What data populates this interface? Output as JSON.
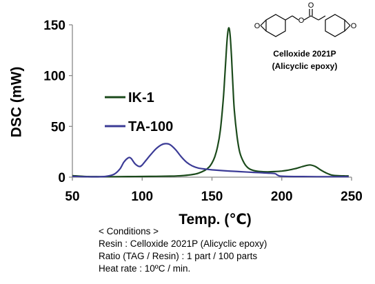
{
  "chart_data": {
    "type": "line",
    "xlabel": "Temp. (℃)",
    "ylabel": "DSC (mW)",
    "xlim": [
      50,
      250
    ],
    "ylim": [
      0,
      150
    ],
    "x_ticks": [
      "50",
      "100",
      "150",
      "200",
      "250"
    ],
    "y_ticks": [
      "0",
      "50",
      "100",
      "150"
    ],
    "grid": false,
    "legend_position": "center-left",
    "series": [
      {
        "name": "IK-1",
        "color": "#1b4a1b",
        "points": [
          [
            50,
            1.5
          ],
          [
            60,
            0.6
          ],
          [
            70,
            0.5
          ],
          [
            80,
            0.5
          ],
          [
            90,
            0.6
          ],
          [
            100,
            0.7
          ],
          [
            110,
            0.8
          ],
          [
            120,
            1.0
          ],
          [
            125,
            1.2
          ],
          [
            130,
            1.6
          ],
          [
            135,
            2.4
          ],
          [
            140,
            3.8
          ],
          [
            145,
            6.8
          ],
          [
            148,
            10
          ],
          [
            150,
            14
          ],
          [
            152,
            20
          ],
          [
            154,
            30
          ],
          [
            156,
            46
          ],
          [
            158,
            75
          ],
          [
            159,
            95
          ],
          [
            160,
            118
          ],
          [
            161,
            138
          ],
          [
            162,
            147
          ],
          [
            163,
            140
          ],
          [
            164,
            118
          ],
          [
            165,
            90
          ],
          [
            166,
            66
          ],
          [
            168,
            40
          ],
          [
            170,
            24
          ],
          [
            173,
            14
          ],
          [
            176,
            9
          ],
          [
            180,
            6.5
          ],
          [
            185,
            5.5
          ],
          [
            190,
            5.2
          ],
          [
            195,
            5.5
          ],
          [
            200,
            6
          ],
          [
            205,
            7
          ],
          [
            210,
            8.5
          ],
          [
            215,
            10.5
          ],
          [
            220,
            12
          ],
          [
            224,
            10.5
          ],
          [
            228,
            7
          ],
          [
            232,
            4
          ],
          [
            236,
            2
          ],
          [
            240,
            1.4
          ],
          [
            245,
            1.3
          ],
          [
            248,
            1.2
          ]
        ]
      },
      {
        "name": "TA-100",
        "color": "#3b3b96",
        "points": [
          [
            50,
            0.8
          ],
          [
            60,
            0.4
          ],
          [
            70,
            0.4
          ],
          [
            75,
            1
          ],
          [
            80,
            3
          ],
          [
            84,
            8
          ],
          [
            87,
            15
          ],
          [
            90,
            19
          ],
          [
            92,
            18.5
          ],
          [
            95,
            13
          ],
          [
            98,
            10.5
          ],
          [
            100,
            12
          ],
          [
            103,
            17
          ],
          [
            106,
            22
          ],
          [
            110,
            28
          ],
          [
            114,
            32
          ],
          [
            117,
            33
          ],
          [
            120,
            32
          ],
          [
            124,
            27
          ],
          [
            128,
            20
          ],
          [
            132,
            14.5
          ],
          [
            136,
            11
          ],
          [
            140,
            9
          ],
          [
            145,
            8
          ],
          [
            150,
            7.2
          ],
          [
            160,
            6.2
          ],
          [
            170,
            5.4
          ],
          [
            180,
            4.7
          ],
          [
            190,
            4
          ],
          [
            195,
            3.5
          ],
          [
            197,
            2
          ],
          [
            199,
            1
          ],
          [
            205,
            0.7
          ],
          [
            215,
            0.6
          ],
          [
            225,
            0.5
          ],
          [
            235,
            0.5
          ],
          [
            245,
            0.5
          ],
          [
            248,
            0.5
          ]
        ]
      }
    ]
  },
  "chemical": {
    "name": "Celloxide 2021P",
    "description": "(Alicyclic epoxy)",
    "oxygen_symbol": "O"
  },
  "conditions": {
    "heading": "< Conditions >",
    "resin": "Resin : Celloxide 2021P (Alicyclic epoxy)",
    "ratio": "Ratio (TAG / Resin) : 1 part / 100 parts",
    "heat_rate": "Heat rate : 10ºC / min."
  }
}
